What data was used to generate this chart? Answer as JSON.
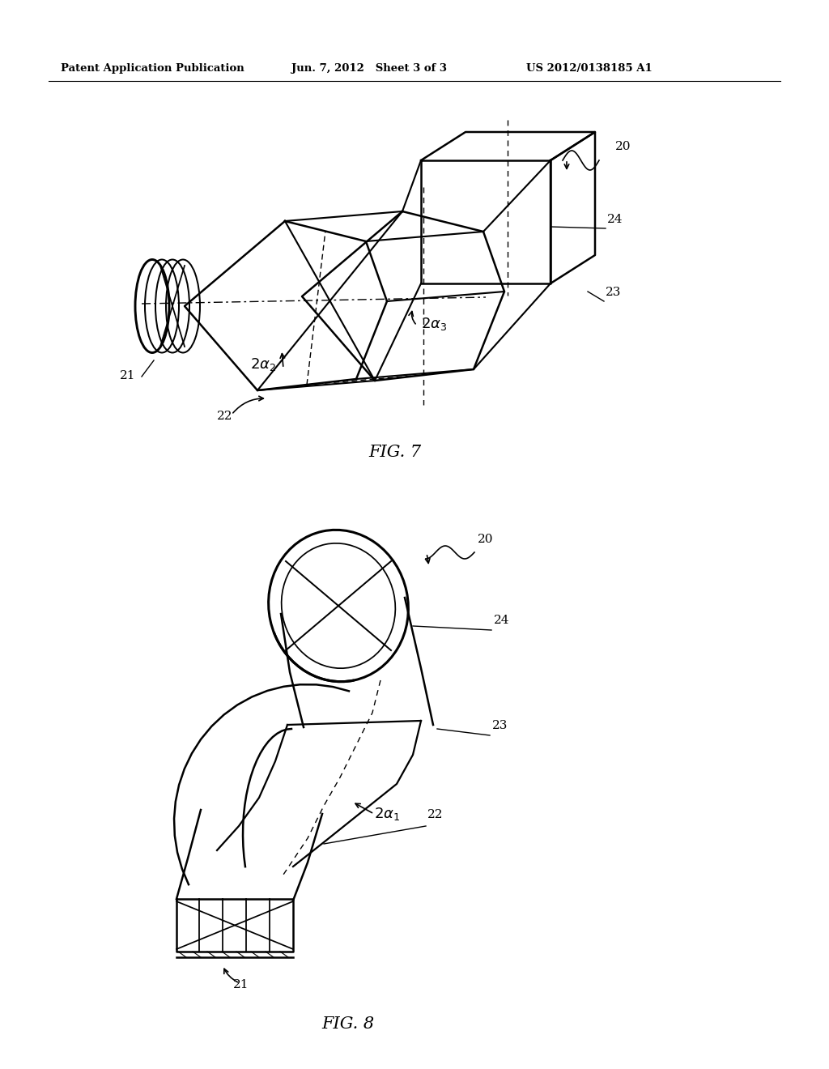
{
  "header_left": "Patent Application Publication",
  "header_mid": "Jun. 7, 2012   Sheet 3 of 3",
  "header_right": "US 2012/0138185 A1",
  "fig7_label": "FIG. 7",
  "fig8_label": "FIG. 8",
  "bg_color": "#ffffff",
  "line_color": "#000000",
  "line_width": 1.8
}
